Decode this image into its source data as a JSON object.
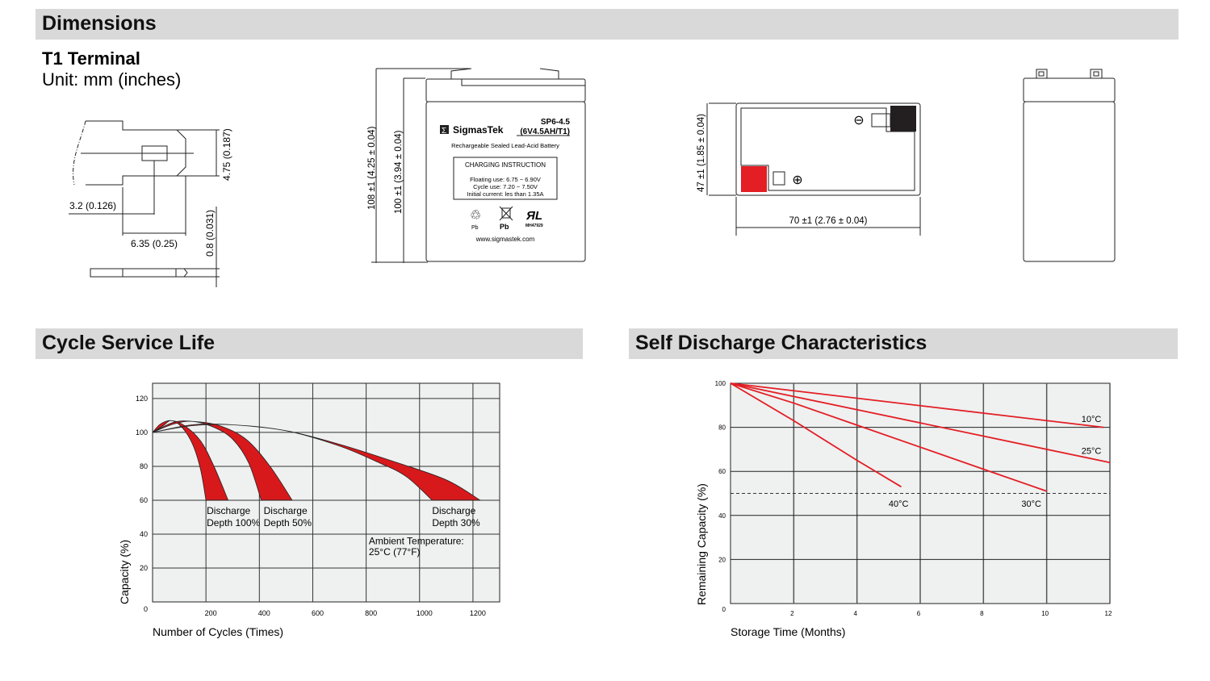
{
  "sections": {
    "dimensions": "Dimensions",
    "cycle_life": "Cycle Service Life",
    "self_discharge": "Self Discharge Characteristics"
  },
  "terminal": {
    "title": "T1 Terminal",
    "unit": "Unit: mm (inches)",
    "dim_height": "4.75 (0.187)",
    "dim_hole": "3.2 (0.126)",
    "dim_width": "6.35 (0.25)",
    "dim_thickness": "0.8 (0.031)"
  },
  "battery_front": {
    "dim_total_height": "108 ±1 (4.25 ± 0.04)",
    "dim_case_height": "100 ±1 (3.94 ± 0.04)",
    "brand": "SigmasTek",
    "model": "SP6-4.5",
    "spec": "(6V4.5AH/T1)",
    "description": "Rechargeable Sealed Lead-Acid Battery",
    "charging_title": "CHARGING INSTRUCTION",
    "floating": "Floating use: 6.75 ~ 6.90V",
    "cycle": "Cycle use: 7.20 ~ 7.50V",
    "initial": "Initial current: les than 1.35A",
    "pb1": "Pb",
    "pb2": "Pb",
    "ul_code": "MH47929",
    "website": "www.sigmastek.com"
  },
  "battery_top": {
    "dim_depth": "47 ±1 (1.85 ± 0.04)",
    "dim_length": "70 ±1 (2.76 ± 0.04)",
    "negative": "⊖",
    "positive": "⊕",
    "colors": {
      "positive": "#e31e24",
      "negative": "#231f20"
    }
  },
  "chart_data": [
    {
      "type": "area",
      "title": "",
      "xlabel": "Number of Cycles (Times)",
      "ylabel": "Capacity (%)",
      "xlim": [
        0,
        1300
      ],
      "ylim": [
        0,
        129
      ],
      "xticks": [
        "200",
        "400",
        "600",
        "800",
        "1000",
        "1200"
      ],
      "yticks": [
        "0",
        "20",
        "40",
        "60",
        "80",
        "100",
        "120"
      ],
      "grid": true,
      "fill_color": "#d7191c",
      "series": [
        {
          "name": "Discharge Depth 100%",
          "label_lines": [
            "Discharge",
            "Depth 100%"
          ],
          "outer": [
            [
              0,
              100
            ],
            [
              30,
              105
            ],
            [
              70,
              107
            ],
            [
              120,
              104
            ],
            [
              180,
              95
            ],
            [
              230,
              80
            ],
            [
              283,
              60
            ]
          ],
          "inner": [
            [
              0,
              100
            ],
            [
              40,
              104
            ],
            [
              70,
              107
            ],
            [
              110,
              103
            ],
            [
              150,
              93
            ],
            [
              180,
              78
            ],
            [
              200,
              60
            ]
          ]
        },
        {
          "name": "Discharge Depth 50%",
          "label_lines": [
            "Discharge",
            "Depth 50%"
          ],
          "outer": [
            [
              0,
              100
            ],
            [
              80,
              106
            ],
            [
              150,
              106.5
            ],
            [
              250,
              104
            ],
            [
              350,
              96
            ],
            [
              440,
              80
            ],
            [
              523,
              60
            ]
          ],
          "inner": [
            [
              0,
              100
            ],
            [
              80,
              105
            ],
            [
              150,
              106.5
            ],
            [
              230,
              103
            ],
            [
              300,
              96
            ],
            [
              360,
              82
            ],
            [
              407,
              60
            ]
          ]
        },
        {
          "name": "Discharge Depth 30%",
          "label_lines": [
            "Discharge",
            "Depth 30%"
          ],
          "outer": [
            [
              0,
              100
            ],
            [
              150,
              104.5
            ],
            [
              300,
              104.5
            ],
            [
              500,
              101
            ],
            [
              700,
              93
            ],
            [
              900,
              83
            ],
            [
              1100,
              72
            ],
            [
              1227,
              60
            ]
          ],
          "inner": [
            [
              0,
              100
            ],
            [
              150,
              104
            ],
            [
              300,
              104.5
            ],
            [
              500,
              101
            ],
            [
              700,
              92
            ],
            [
              850,
              82
            ],
            [
              950,
              74
            ],
            [
              1047,
              60
            ]
          ]
        }
      ],
      "annotation": [
        "Ambient Temperature:",
        "25°C (77°F)"
      ]
    },
    {
      "type": "line",
      "title": "",
      "xlabel": "Storage Time (Months)",
      "ylabel": "Remaining Capacity (%)",
      "xlim": [
        0,
        12
      ],
      "ylim": [
        0,
        100
      ],
      "xticks": [
        "2",
        "4",
        "6",
        "8",
        "10",
        "12"
      ],
      "yticks": [
        "0",
        "20",
        "40",
        "60",
        "80",
        "100"
      ],
      "grid": true,
      "reference_line": 50,
      "line_color": "#e31e24",
      "series": [
        {
          "name": "10°C",
          "points": [
            [
              0,
              100
            ],
            [
              11.8,
              80
            ]
          ]
        },
        {
          "name": "25°C",
          "points": [
            [
              0,
              100
            ],
            [
              4,
              88
            ],
            [
              8,
              76
            ],
            [
              12,
              64
            ]
          ]
        },
        {
          "name": "30°C",
          "points": [
            [
              0,
              100
            ],
            [
              2,
              91
            ],
            [
              4,
              81
            ],
            [
              6,
              71
            ],
            [
              8,
              61
            ],
            [
              10,
              51
            ]
          ]
        },
        {
          "name": "40°C",
          "points": [
            [
              0,
              100
            ],
            [
              2,
              83
            ],
            [
              4,
              65
            ],
            [
              5.4,
              53
            ]
          ]
        }
      ]
    }
  ]
}
